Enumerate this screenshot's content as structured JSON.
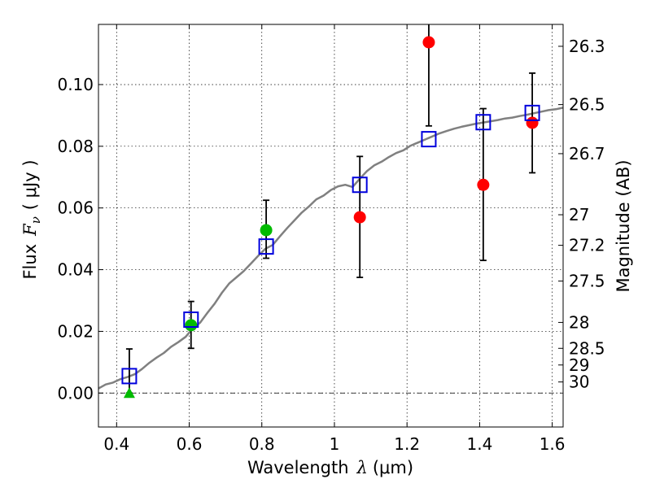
{
  "chart_data": {
    "type": "scatter",
    "xlabel": "Wavelength",
    "xlabel_math": "λ",
    "xlabel_unit": "(μm)",
    "ylabel": "Flux",
    "ylabel_math": "F",
    "ylabel_math_sub": "ν",
    "ylabel_unit": "( μJy )",
    "ylabel_right": "Magnitude (AB)",
    "xlim": [
      0.35,
      1.63
    ],
    "ylim": [
      -0.011,
      0.1195
    ],
    "grid": true,
    "x_ticks": [
      {
        "value": 0.4,
        "label": "0.4"
      },
      {
        "value": 0.6,
        "label": "0.6"
      },
      {
        "value": 0.8,
        "label": "0.8"
      },
      {
        "value": 1.0,
        "label": "1"
      },
      {
        "value": 1.2,
        "label": "1.2"
      },
      {
        "value": 1.4,
        "label": "1.4"
      },
      {
        "value": 1.6,
        "label": "1.6"
      }
    ],
    "y_ticks": [
      {
        "value": 0.0,
        "label": "0.00"
      },
      {
        "value": 0.02,
        "label": "0.02"
      },
      {
        "value": 0.04,
        "label": "0.04"
      },
      {
        "value": 0.06,
        "label": "0.06"
      },
      {
        "value": 0.08,
        "label": "0.08"
      },
      {
        "value": 0.1,
        "label": "0.10"
      }
    ],
    "right_ticks": [
      {
        "flux": 0.1124,
        "label": "26.3"
      },
      {
        "flux": 0.0935,
        "label": "26.5"
      },
      {
        "flux": 0.0776,
        "label": "26.7"
      },
      {
        "flux": 0.0578,
        "label": "27"
      },
      {
        "flux": 0.0479,
        "label": "27.2"
      },
      {
        "flux": 0.0363,
        "label": "27.5"
      },
      {
        "flux": 0.0229,
        "label": "28"
      },
      {
        "flux": 0.0145,
        "label": "28.5"
      },
      {
        "flux": 0.0091,
        "label": "29"
      },
      {
        "flux": 0.0036,
        "label": "30"
      }
    ],
    "model_spectrum": {
      "name": "model SED",
      "color": "#808080",
      "x": [
        0.35,
        0.37,
        0.39,
        0.41,
        0.43,
        0.45,
        0.47,
        0.49,
        0.51,
        0.53,
        0.55,
        0.57,
        0.59,
        0.61,
        0.63,
        0.65,
        0.67,
        0.69,
        0.71,
        0.73,
        0.75,
        0.77,
        0.79,
        0.81,
        0.83,
        0.85,
        0.87,
        0.89,
        0.91,
        0.93,
        0.95,
        0.97,
        0.99,
        1.01,
        1.03,
        1.05,
        1.07,
        1.09,
        1.11,
        1.13,
        1.15,
        1.17,
        1.19,
        1.21,
        1.23,
        1.25,
        1.27,
        1.29,
        1.31,
        1.33,
        1.35,
        1.37,
        1.39,
        1.41,
        1.43,
        1.45,
        1.47,
        1.49,
        1.51,
        1.53,
        1.55,
        1.57,
        1.59,
        1.61,
        1.63
      ],
      "y": [
        0.0015,
        0.0028,
        0.0034,
        0.0045,
        0.0052,
        0.0061,
        0.0078,
        0.0098,
        0.0115,
        0.013,
        0.015,
        0.0165,
        0.0182,
        0.021,
        0.0228,
        0.026,
        0.029,
        0.0325,
        0.0355,
        0.0375,
        0.0395,
        0.042,
        0.0445,
        0.0468,
        0.048,
        0.0508,
        0.0535,
        0.056,
        0.0585,
        0.0605,
        0.0628,
        0.064,
        0.0658,
        0.067,
        0.0675,
        0.0668,
        0.0695,
        0.072,
        0.0738,
        0.075,
        0.0765,
        0.0778,
        0.0787,
        0.0802,
        0.0812,
        0.0822,
        0.0832,
        0.0842,
        0.085,
        0.0857,
        0.0863,
        0.0868,
        0.0873,
        0.0877,
        0.0881,
        0.0885,
        0.089,
        0.0893,
        0.0898,
        0.0902,
        0.0907,
        0.0912,
        0.0917,
        0.092,
        0.0925
      ]
    },
    "series": [
      {
        "name": "red points",
        "marker": "circle",
        "color": "#ff0000",
        "points": [
          {
            "x": 1.07,
            "y": 0.057,
            "err_lo": 0.0375,
            "err_hi": 0.0767
          },
          {
            "x": 1.26,
            "y": 0.1137,
            "err_lo": 0.0866,
            "err_hi": 0.1195
          },
          {
            "x": 1.41,
            "y": 0.0675,
            "err_lo": 0.043,
            "err_hi": 0.0922
          },
          {
            "x": 1.545,
            "y": 0.0876,
            "err_lo": 0.0714,
            "err_hi": 0.1037
          }
        ]
      },
      {
        "name": "green points",
        "marker": "circle",
        "color": "#00bb00",
        "points": [
          {
            "x": 0.605,
            "y": 0.022,
            "err_lo": 0.0145,
            "err_hi": 0.0297
          },
          {
            "x": 0.812,
            "y": 0.0528,
            "err_lo": 0.0437,
            "err_hi": 0.0625
          }
        ]
      },
      {
        "name": "green upper-limit",
        "marker": "triangle",
        "color": "#00bb00",
        "points": [
          {
            "x": 0.435,
            "y": 0.0,
            "err_lo": 0.0,
            "err_hi": 0.0143
          }
        ]
      },
      {
        "name": "model squares",
        "marker": "square",
        "color": "#0000dd",
        "points": [
          {
            "x": 0.435,
            "y": 0.0055
          },
          {
            "x": 0.605,
            "y": 0.0238
          },
          {
            "x": 0.812,
            "y": 0.0475
          },
          {
            "x": 1.07,
            "y": 0.0675
          },
          {
            "x": 1.26,
            "y": 0.0823
          },
          {
            "x": 1.41,
            "y": 0.0878
          },
          {
            "x": 1.545,
            "y": 0.0908
          }
        ]
      }
    ]
  }
}
